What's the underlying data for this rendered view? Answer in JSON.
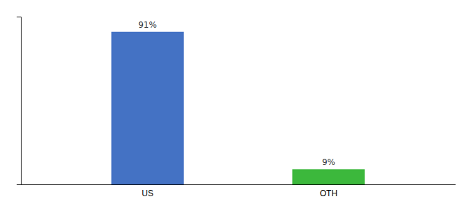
{
  "chart_data": {
    "type": "bar",
    "categories": [
      "US",
      "OTH"
    ],
    "values": [
      91,
      9
    ],
    "value_labels": [
      "91%",
      "9%"
    ],
    "colors": [
      "#4472c4",
      "#3cb83c"
    ],
    "ylim": [
      0,
      100
    ],
    "yticks": [],
    "tick_labels": "x",
    "data_labels": true
  }
}
